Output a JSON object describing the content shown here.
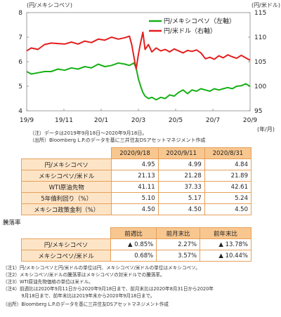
{
  "chart_data": {
    "type": "line",
    "y_left_label": "(円/メキシコペソ)",
    "y_right_label": "(円/米ドル)",
    "x_unit": "(年/月)",
    "y_left_lim": [
      4,
      8
    ],
    "y_right_lim": [
      95,
      115
    ],
    "y_left_ticks": [
      4,
      5,
      6,
      7,
      8
    ],
    "y_right_ticks": [
      95,
      100,
      105,
      110,
      115
    ],
    "x_tick_labels": [
      "19/9",
      "19/11",
      "20/1",
      "20/3",
      "20/5",
      "20/7",
      "20/9"
    ],
    "legend_position": "top-right",
    "series": [
      {
        "name": "円/メキシコペソ（左軸）",
        "color": "#16b016",
        "axis": "left",
        "x": [
          0,
          0.02,
          0.05,
          0.08,
          0.11,
          0.14,
          0.17,
          0.2,
          0.23,
          0.26,
          0.29,
          0.32,
          0.35,
          0.38,
          0.41,
          0.44,
          0.46,
          0.48,
          0.49,
          0.5,
          0.51,
          0.52,
          0.53,
          0.545,
          0.56,
          0.58,
          0.6,
          0.62,
          0.64,
          0.66,
          0.68,
          0.7,
          0.72,
          0.74,
          0.76,
          0.78,
          0.8,
          0.82,
          0.84,
          0.86,
          0.88,
          0.9,
          0.92,
          0.94,
          0.96,
          0.98,
          1.0
        ],
        "values": [
          5.6,
          5.5,
          5.55,
          5.6,
          5.6,
          5.7,
          5.65,
          5.75,
          5.7,
          5.8,
          5.75,
          5.9,
          5.8,
          5.85,
          5.95,
          5.9,
          5.85,
          5.95,
          5.75,
          5.3,
          5.0,
          4.75,
          4.6,
          4.5,
          4.55,
          4.45,
          4.55,
          4.5,
          4.65,
          4.6,
          4.75,
          4.85,
          4.7,
          4.85,
          4.8,
          4.9,
          4.85,
          4.8,
          4.9,
          4.85,
          4.9,
          4.95,
          4.9,
          5.0,
          5.02,
          5.1,
          5.0
        ]
      },
      {
        "name": "円/米ドル（右軸）",
        "color": "#e41e1e",
        "axis": "right",
        "x": [
          0,
          0.02,
          0.05,
          0.08,
          0.11,
          0.14,
          0.17,
          0.2,
          0.23,
          0.26,
          0.29,
          0.32,
          0.35,
          0.38,
          0.41,
          0.44,
          0.46,
          0.47,
          0.48,
          0.49,
          0.5,
          0.51,
          0.52,
          0.53,
          0.545,
          0.56,
          0.58,
          0.6,
          0.62,
          0.64,
          0.66,
          0.68,
          0.7,
          0.72,
          0.74,
          0.76,
          0.78,
          0.8,
          0.82,
          0.84,
          0.86,
          0.88,
          0.9,
          0.92,
          0.94,
          0.96,
          0.98,
          1.0
        ],
        "values": [
          107.2,
          107.8,
          107.5,
          108.5,
          108.8,
          108.7,
          108.6,
          109.0,
          108.6,
          109.2,
          108.9,
          109.6,
          109.4,
          110.0,
          109.6,
          109.9,
          110.2,
          108.5,
          106.0,
          103.5,
          106.5,
          108.9,
          111.0,
          107.5,
          108.5,
          107.0,
          107.8,
          107.2,
          107.5,
          107.0,
          107.6,
          107.2,
          106.8,
          107.3,
          107.1,
          107.4,
          106.8,
          105.6,
          105.9,
          105.5,
          106.2,
          105.8,
          106.4,
          106.0,
          105.7,
          106.3,
          105.8,
          105.3
        ]
      }
    ]
  },
  "chart_notes": [
    "（注）データは2019年9月18日～2020年9月18日。",
    "（出所）Bloomberg L.P.のデータを基に三井住友DSアセットマネジメント作成"
  ],
  "table1": {
    "headers": [
      "",
      "2020/9/18",
      "2020/9/11",
      "2020/8/31"
    ],
    "rows": [
      {
        "label": "円/メキシコペソ",
        "values": [
          "4.95",
          "4.99",
          "4.84"
        ]
      },
      {
        "label": "メキシコペソ/米ドル",
        "values": [
          "21.13",
          "21.28",
          "21.89"
        ]
      },
      {
        "label": "WTI原油先物",
        "values": [
          "41.11",
          "37.33",
          "42.61"
        ]
      },
      {
        "label": "5年債利回り（%）",
        "values": [
          "5.10",
          "5.17",
          "5.24"
        ]
      },
      {
        "label": "メキシコ政策金利（%）",
        "values": [
          "4.50",
          "4.50",
          "4.50"
        ]
      }
    ]
  },
  "section2_title": "騰落率",
  "table2": {
    "headers": [
      "",
      "前週比",
      "前月末比",
      "前年末比"
    ],
    "rows": [
      {
        "label": "円/メキシコペソ",
        "values": [
          "▲ 0.85%",
          "2.27%",
          "▲ 13.78%"
        ]
      },
      {
        "label": "メキシコペソ/米ドル",
        "values": [
          "0.68%",
          "3.57%",
          "▲ 10.44%"
        ]
      }
    ]
  },
  "footnotes": [
    "（注1）円/メキシコペソと円/米ドルの単位は円、メキシコペソ/米ドルの単位はメキシコペソ。",
    "（注2）メキシコペソ/米ドルの騰落率はメキシコペソの対米ドルでの騰落率。",
    "（注3）WTI原油先物価格の単位は米ドル。",
    "（注4）前週比は2020年9月11日から2020年9月18日まで、前月末比は2020年8月31日から2020年",
    "　　　　9月18日まで、前年末比は2019年末から2020年9月18日まで。",
    "（出所）Bloomberg L.P.のデータを基に三井住友DSアセットマネジメント作成"
  ]
}
